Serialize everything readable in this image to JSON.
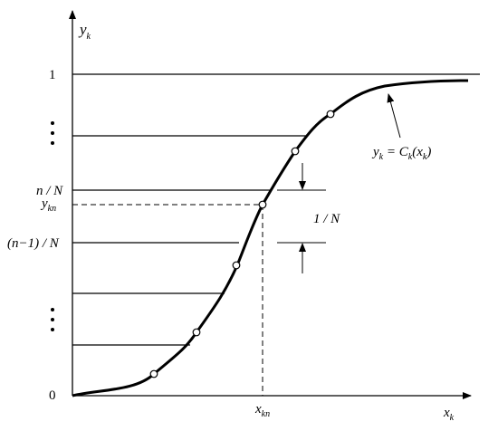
{
  "axes": {
    "y_label": {
      "base": "y",
      "sub": "k"
    },
    "x_label": {
      "base": "x",
      "sub": "k"
    }
  },
  "levels": {
    "one": "1",
    "zero": "0",
    "n_over_N": "n / N",
    "n_minus_1_over_N": "(n−1) / N"
  },
  "point": {
    "y": {
      "base": "y",
      "sub": "kn"
    },
    "x": {
      "base": "x",
      "sub": "kn"
    }
  },
  "interval": "1 / N",
  "curve_label": [
    "y",
    "k",
    " = C",
    "k",
    "(x",
    "k",
    ")"
  ]
}
